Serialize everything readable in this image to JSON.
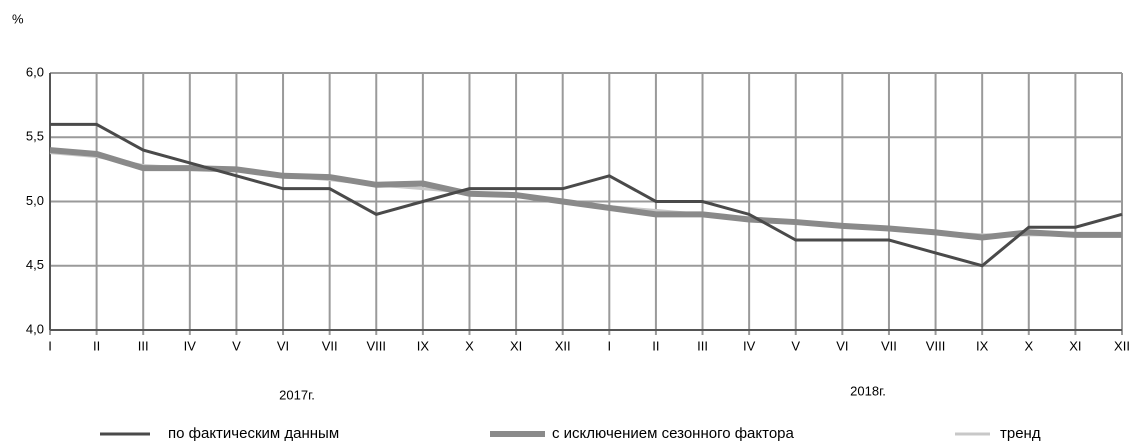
{
  "chart_data": {
    "type": "line",
    "y_unit": "%",
    "categories": [
      "I",
      "II",
      "III",
      "IV",
      "V",
      "VI",
      "VII",
      "VIII",
      "IX",
      "X",
      "XI",
      "XII",
      "I",
      "II",
      "III",
      "IV",
      "V",
      "VI",
      "VII",
      "VIII",
      "IX",
      "X",
      "XI",
      "XII"
    ],
    "annotations": [
      "2017г.",
      "2018г."
    ],
    "series": [
      {
        "name": "по фактическим данным",
        "color": "#4a4a4a",
        "values": [
          5.6,
          5.6,
          5.4,
          5.3,
          5.2,
          5.1,
          5.1,
          4.9,
          5.0,
          5.1,
          5.1,
          5.1,
          5.2,
          5.0,
          5.0,
          4.9,
          4.7,
          4.7,
          4.7,
          4.6,
          4.5,
          4.8,
          4.8,
          4.9
        ]
      },
      {
        "name": "с исключением сезонного фактора",
        "color": "#8a8a8a",
        "values": [
          5.4,
          5.37,
          5.26,
          5.26,
          5.25,
          5.2,
          5.19,
          5.13,
          5.14,
          5.06,
          5.05,
          5.0,
          4.95,
          4.9,
          4.9,
          4.86,
          4.84,
          4.81,
          4.79,
          4.76,
          4.72,
          4.76,
          4.74,
          4.74
        ]
      },
      {
        "name": "тренд",
        "color": "#c8c8c8",
        "values": [
          5.38,
          5.35,
          5.28,
          5.26,
          5.24,
          5.2,
          5.17,
          5.13,
          5.1,
          5.07,
          5.04,
          5.0,
          4.96,
          4.93,
          4.9,
          4.87,
          4.84,
          4.81,
          4.78,
          4.76,
          4.74,
          4.74,
          4.74,
          4.74
        ]
      }
    ],
    "ylim": [
      4.0,
      6.0
    ],
    "yticks": [
      {
        "value": 4.0,
        "label": "4,0"
      },
      {
        "value": 4.5,
        "label": "4,5"
      },
      {
        "value": 5.0,
        "label": "5,0"
      },
      {
        "value": 5.5,
        "label": "5,5"
      },
      {
        "value": 6.0,
        "label": "6,0"
      }
    ],
    "grid": true
  }
}
